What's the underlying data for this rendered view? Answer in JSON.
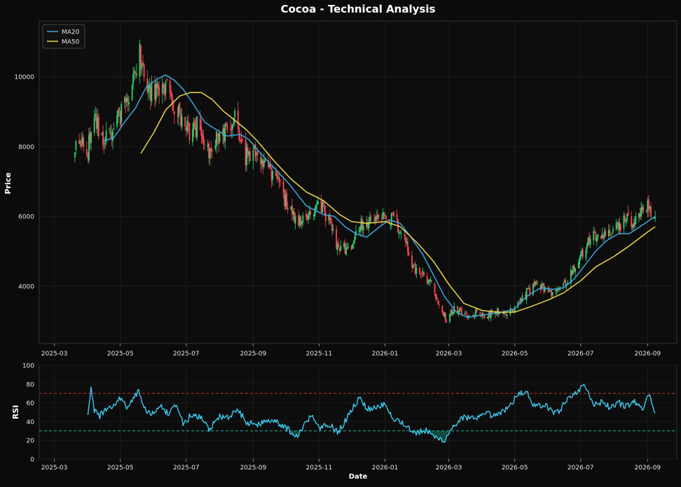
{
  "chart_data": {
    "title": "Cocoa - Technical Analysis",
    "colors": {
      "background": "#0b0b0b",
      "panel": "#0d0d0d",
      "grid": "#1c1c1c",
      "axis_text": "#e6e6e6",
      "up": "#2ed573",
      "down": "#ff4757",
      "ma20": "#39a7e0",
      "ma50": "#e9d84a",
      "rsi": "#3ec9ee",
      "rsi_overbought": "#c0392b",
      "rsi_oversold": "#1abc9c"
    },
    "price_panel": {
      "type": "candlestick",
      "ylabel": "Price",
      "ylim": [
        2350,
        11600
      ],
      "yticks": [
        4000,
        6000,
        8000,
        10000
      ],
      "legend_position": "top-left",
      "legend": [
        "MA20",
        "MA50"
      ],
      "candle_anchors": [
        [
          "2025-03-20",
          8100
        ],
        [
          "2025-04-01",
          7950
        ],
        [
          "2025-04-08",
          8800
        ],
        [
          "2025-04-15",
          8100
        ],
        [
          "2025-04-22",
          8400
        ],
        [
          "2025-05-01",
          8900
        ],
        [
          "2025-05-10",
          9400
        ],
        [
          "2025-05-15",
          10400
        ],
        [
          "2025-05-20",
          10700
        ],
        [
          "2025-05-28",
          9600
        ],
        [
          "2025-06-05",
          9500
        ],
        [
          "2025-06-12",
          9800
        ],
        [
          "2025-06-20",
          9200
        ],
        [
          "2025-06-28",
          8700
        ],
        [
          "2025-07-05",
          8400
        ],
        [
          "2025-07-12",
          8600
        ],
        [
          "2025-07-20",
          7800
        ],
        [
          "2025-07-28",
          8300
        ],
        [
          "2025-08-05",
          8400
        ],
        [
          "2025-08-15",
          8900
        ],
        [
          "2025-08-25",
          7700
        ],
        [
          "2025-09-05",
          7900
        ],
        [
          "2025-09-15",
          7300
        ],
        [
          "2025-09-25",
          6900
        ],
        [
          "2025-10-05",
          6100
        ],
        [
          "2025-10-15",
          5800
        ],
        [
          "2025-10-25",
          6000
        ],
        [
          "2025-11-01",
          6400
        ],
        [
          "2025-11-10",
          5900
        ],
        [
          "2025-11-18",
          5100
        ],
        [
          "2025-11-25",
          5050
        ],
        [
          "2025-12-01",
          5200
        ],
        [
          "2025-12-08",
          5700
        ],
        [
          "2025-12-15",
          5900
        ],
        [
          "2025-12-22",
          5750
        ],
        [
          "2026-01-01",
          6000
        ],
        [
          "2026-01-10",
          5900
        ],
        [
          "2026-01-20",
          5200
        ],
        [
          "2026-01-28",
          4500
        ],
        [
          "2026-02-05",
          4350
        ],
        [
          "2026-02-12",
          4100
        ],
        [
          "2026-02-20",
          3500
        ],
        [
          "2026-02-27",
          3000
        ],
        [
          "2026-03-05",
          3350
        ],
        [
          "2026-03-12",
          3300
        ],
        [
          "2026-03-20",
          3150
        ],
        [
          "2026-03-28",
          3250
        ],
        [
          "2026-04-05",
          3150
        ],
        [
          "2026-04-12",
          3300
        ],
        [
          "2026-04-20",
          3200
        ],
        [
          "2026-04-28",
          3250
        ],
        [
          "2026-05-05",
          3500
        ],
        [
          "2026-05-12",
          3800
        ],
        [
          "2026-05-20",
          4050
        ],
        [
          "2026-05-28",
          3950
        ],
        [
          "2026-06-05",
          3800
        ],
        [
          "2026-06-12",
          3900
        ],
        [
          "2026-06-20",
          4200
        ],
        [
          "2026-06-28",
          4700
        ],
        [
          "2026-07-05",
          5100
        ],
        [
          "2026-07-12",
          5400
        ],
        [
          "2026-07-20",
          5300
        ],
        [
          "2026-07-28",
          5500
        ],
        [
          "2026-08-05",
          5700
        ],
        [
          "2026-08-12",
          5900
        ],
        [
          "2026-08-20",
          5800
        ],
        [
          "2026-08-28",
          6100
        ],
        [
          "2026-09-02",
          6300
        ],
        [
          "2026-09-08",
          6000
        ]
      ],
      "ma20": [
        [
          "2025-04-15",
          8150
        ],
        [
          "2025-04-25",
          8250
        ],
        [
          "2025-05-05",
          8700
        ],
        [
          "2025-05-15",
          9100
        ],
        [
          "2025-05-25",
          9700
        ],
        [
          "2025-06-05",
          9950
        ],
        [
          "2025-06-12",
          10050
        ],
        [
          "2025-06-20",
          9900
        ],
        [
          "2025-06-28",
          9650
        ],
        [
          "2025-07-08",
          9200
        ],
        [
          "2025-07-18",
          8700
        ],
        [
          "2025-07-28",
          8500
        ],
        [
          "2025-08-08",
          8300
        ],
        [
          "2025-08-20",
          8350
        ],
        [
          "2025-08-28",
          8200
        ],
        [
          "2025-09-08",
          7800
        ],
        [
          "2025-09-20",
          7400
        ],
        [
          "2025-10-05",
          6900
        ],
        [
          "2025-10-20",
          6300
        ],
        [
          "2025-11-05",
          6050
        ],
        [
          "2025-11-15",
          6000
        ],
        [
          "2025-11-25",
          5700
        ],
        [
          "2025-12-05",
          5500
        ],
        [
          "2025-12-15",
          5400
        ],
        [
          "2025-12-25",
          5650
        ],
        [
          "2026-01-05",
          5900
        ],
        [
          "2026-01-15",
          5800
        ],
        [
          "2026-01-25",
          5400
        ],
        [
          "2026-02-05",
          4900
        ],
        [
          "2026-02-15",
          4300
        ],
        [
          "2026-02-25",
          3700
        ],
        [
          "2026-03-08",
          3250
        ],
        [
          "2026-03-18",
          3100
        ],
        [
          "2026-03-28",
          3150
        ],
        [
          "2026-04-08",
          3200
        ],
        [
          "2026-04-20",
          3250
        ],
        [
          "2026-05-01",
          3350
        ],
        [
          "2026-05-12",
          3700
        ],
        [
          "2026-05-25",
          3950
        ],
        [
          "2026-06-05",
          3900
        ],
        [
          "2026-06-15",
          3950
        ],
        [
          "2026-06-25",
          4200
        ],
        [
          "2026-07-05",
          4600
        ],
        [
          "2026-07-15",
          5000
        ],
        [
          "2026-07-25",
          5300
        ],
        [
          "2026-08-05",
          5500
        ],
        [
          "2026-08-15",
          5500
        ],
        [
          "2026-08-25",
          5700
        ],
        [
          "2026-09-08",
          6000
        ]
      ],
      "ma50": [
        [
          "2025-05-20",
          7800
        ],
        [
          "2025-06-01",
          8400
        ],
        [
          "2025-06-12",
          9050
        ],
        [
          "2025-06-25",
          9450
        ],
        [
          "2025-07-05",
          9550
        ],
        [
          "2025-07-15",
          9550
        ],
        [
          "2025-07-25",
          9350
        ],
        [
          "2025-08-05",
          9000
        ],
        [
          "2025-08-15",
          8750
        ],
        [
          "2025-08-25",
          8500
        ],
        [
          "2025-09-05",
          8150
        ],
        [
          "2025-09-20",
          7600
        ],
        [
          "2025-10-05",
          7100
        ],
        [
          "2025-10-20",
          6700
        ],
        [
          "2025-11-05",
          6450
        ],
        [
          "2025-11-20",
          6050
        ],
        [
          "2025-12-01",
          5850
        ],
        [
          "2025-12-15",
          5800
        ],
        [
          "2026-01-01",
          5850
        ],
        [
          "2026-01-15",
          5700
        ],
        [
          "2026-02-01",
          5200
        ],
        [
          "2026-02-15",
          4700
        ],
        [
          "2026-03-01",
          4050
        ],
        [
          "2026-03-15",
          3500
        ],
        [
          "2026-04-01",
          3300
        ],
        [
          "2026-04-15",
          3250
        ],
        [
          "2026-05-01",
          3250
        ],
        [
          "2026-05-15",
          3400
        ],
        [
          "2026-06-01",
          3600
        ],
        [
          "2026-06-15",
          3800
        ],
        [
          "2026-07-01",
          4150
        ],
        [
          "2026-07-15",
          4550
        ],
        [
          "2026-08-01",
          4850
        ],
        [
          "2026-08-15",
          5150
        ],
        [
          "2026-09-01",
          5550
        ],
        [
          "2026-09-08",
          5700
        ]
      ]
    },
    "rsi_panel": {
      "type": "line",
      "ylabel": "RSI",
      "xlabel": "Date",
      "ylim": [
        0,
        100
      ],
      "yticks": [
        0,
        20,
        40,
        60,
        80,
        100
      ],
      "overbought": 70,
      "oversold": 30,
      "rsi_anchors": [
        [
          "2025-04-01",
          45
        ],
        [
          "2025-04-04",
          76
        ],
        [
          "2025-04-07",
          52
        ],
        [
          "2025-04-12",
          46
        ],
        [
          "2025-04-18",
          53
        ],
        [
          "2025-04-25",
          58
        ],
        [
          "2025-05-01",
          65
        ],
        [
          "2025-05-07",
          56
        ],
        [
          "2025-05-13",
          64
        ],
        [
          "2025-05-18",
          73
        ],
        [
          "2025-05-24",
          52
        ],
        [
          "2025-06-01",
          48
        ],
        [
          "2025-06-08",
          55
        ],
        [
          "2025-06-15",
          47
        ],
        [
          "2025-06-22",
          58
        ],
        [
          "2025-06-28",
          38
        ],
        [
          "2025-07-05",
          46
        ],
        [
          "2025-07-15",
          44
        ],
        [
          "2025-07-22",
          32
        ],
        [
          "2025-08-01",
          45
        ],
        [
          "2025-08-10",
          44
        ],
        [
          "2025-08-18",
          53
        ],
        [
          "2025-08-25",
          40
        ],
        [
          "2025-09-05",
          36
        ],
        [
          "2025-09-15",
          43
        ],
        [
          "2025-09-25",
          38
        ],
        [
          "2025-10-05",
          30
        ],
        [
          "2025-10-12",
          24
        ],
        [
          "2025-10-18",
          36
        ],
        [
          "2025-10-25",
          48
        ],
        [
          "2025-11-01",
          34
        ],
        [
          "2025-11-10",
          38
        ],
        [
          "2025-11-18",
          28
        ],
        [
          "2025-11-25",
          40
        ],
        [
          "2025-12-01",
          52
        ],
        [
          "2025-12-08",
          65
        ],
        [
          "2025-12-15",
          54
        ],
        [
          "2025-12-25",
          55
        ],
        [
          "2026-01-01",
          60
        ],
        [
          "2026-01-08",
          44
        ],
        [
          "2026-01-18",
          38
        ],
        [
          "2026-01-28",
          28
        ],
        [
          "2026-02-08",
          30
        ],
        [
          "2026-02-18",
          22
        ],
        [
          "2026-02-25",
          20
        ],
        [
          "2026-03-05",
          35
        ],
        [
          "2026-03-15",
          45
        ],
        [
          "2026-03-25",
          42
        ],
        [
          "2026-04-05",
          48
        ],
        [
          "2026-04-15",
          46
        ],
        [
          "2026-04-25",
          55
        ],
        [
          "2026-05-05",
          70
        ],
        [
          "2026-05-12",
          72
        ],
        [
          "2026-05-20",
          55
        ],
        [
          "2026-05-28",
          58
        ],
        [
          "2026-06-05",
          50
        ],
        [
          "2026-06-12",
          52
        ],
        [
          "2026-06-20",
          66
        ],
        [
          "2026-06-28",
          72
        ],
        [
          "2026-07-05",
          80
        ],
        [
          "2026-07-12",
          58
        ],
        [
          "2026-07-20",
          60
        ],
        [
          "2026-07-28",
          55
        ],
        [
          "2026-08-05",
          60
        ],
        [
          "2026-08-12",
          56
        ],
        [
          "2026-08-20",
          62
        ],
        [
          "2026-08-28",
          52
        ],
        [
          "2026-09-02",
          70
        ],
        [
          "2026-09-08",
          50
        ]
      ]
    },
    "x_axis": {
      "range": [
        "2025-02-15",
        "2026-09-28"
      ],
      "ticks": [
        [
          "2025-03-01",
          "2025-03"
        ],
        [
          "2025-05-01",
          "2025-05"
        ],
        [
          "2025-07-01",
          "2025-07"
        ],
        [
          "2025-09-01",
          "2025-09"
        ],
        [
          "2025-11-01",
          "2025-11"
        ],
        [
          "2026-01-01",
          "2026-01"
        ],
        [
          "2026-03-01",
          "2026-03"
        ],
        [
          "2026-05-01",
          "2026-05"
        ],
        [
          "2026-07-01",
          "2026-07"
        ],
        [
          "2026-09-01",
          "2026-09"
        ]
      ]
    }
  }
}
